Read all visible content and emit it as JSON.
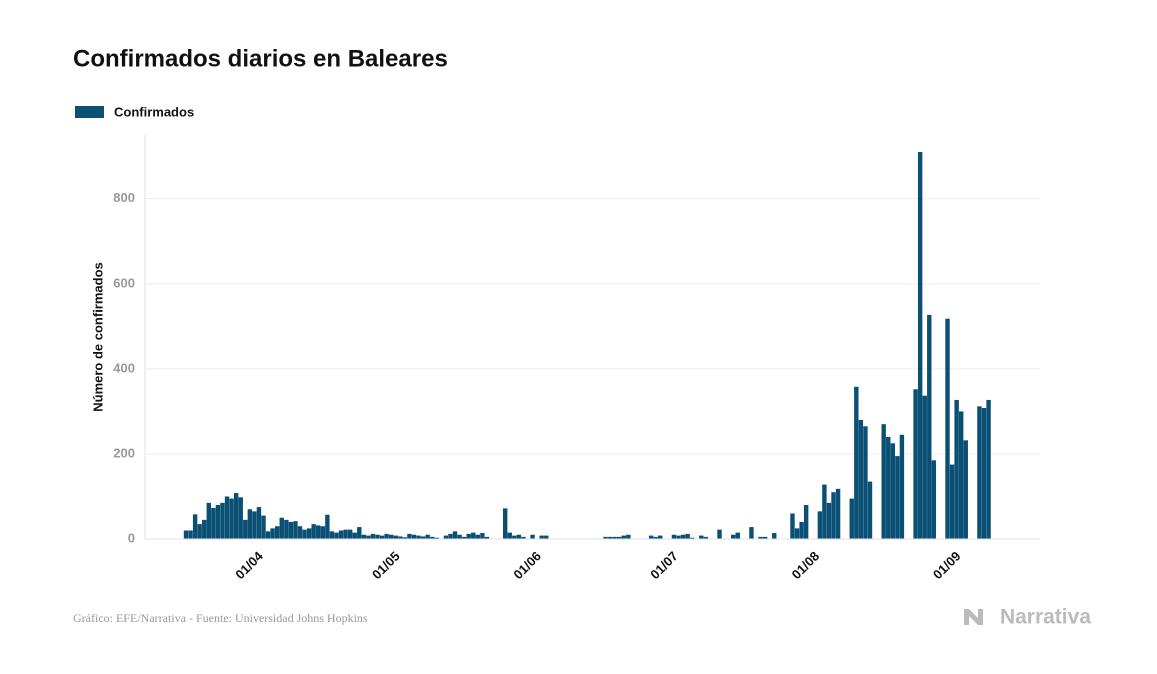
{
  "chart_data": {
    "type": "bar",
    "title": "Confirmados diarios en Baleares",
    "y_label": "Número de confirmados",
    "source": "Gráfico: EFE/Narrativa - Fuente: Universidad Johns Hopkins",
    "logo": "Narrativa",
    "ylim": [
      0,
      950
    ],
    "yticks": [
      0,
      200,
      400,
      600,
      800
    ],
    "grid": true,
    "categories": [
      null,
      null,
      null,
      null,
      null,
      null,
      null,
      null,
      null,
      null,
      null,
      null,
      null,
      null,
      "01/04",
      null,
      null,
      null,
      null,
      null,
      null,
      null,
      null,
      null,
      null,
      null,
      null,
      null,
      null,
      null,
      null,
      null,
      null,
      null,
      null,
      null,
      null,
      null,
      null,
      null,
      null,
      null,
      null,
      null,
      "01/05",
      null,
      null,
      null,
      null,
      null,
      null,
      null,
      null,
      null,
      null,
      null,
      null,
      null,
      null,
      null,
      null,
      null,
      null,
      null,
      null,
      null,
      null,
      null,
      null,
      null,
      null,
      null,
      null,
      null,
      null,
      "01/06",
      null,
      null,
      null,
      null,
      null,
      null,
      null,
      null,
      null,
      null,
      null,
      null,
      null,
      null,
      null,
      null,
      null,
      null,
      null,
      null,
      null,
      null,
      null,
      null,
      null,
      null,
      null,
      null,
      null,
      "01/07",
      null,
      null,
      null,
      null,
      null,
      null,
      null,
      null,
      null,
      null,
      null,
      null,
      null,
      null,
      null,
      null,
      null,
      null,
      null,
      null,
      null,
      null,
      null,
      null,
      null,
      null,
      null,
      null,
      null,
      null,
      "01/08",
      null,
      null,
      null,
      null,
      null,
      null,
      null,
      null,
      null,
      null,
      null,
      null,
      null,
      null,
      null,
      null,
      null,
      null,
      null,
      null,
      null,
      null,
      null,
      null,
      null,
      null,
      null,
      null,
      null,
      null,
      "01/09",
      null,
      null,
      null,
      null,
      null,
      null,
      null,
      null,
      null
    ],
    "series": [
      {
        "name": "Confirmados",
        "color": "#0a4f74",
        "values": [
          20,
          20,
          58,
          35,
          45,
          85,
          73,
          80,
          85,
          100,
          95,
          108,
          98,
          45,
          70,
          65,
          75,
          55,
          18,
          25,
          30,
          50,
          45,
          40,
          42,
          30,
          22,
          25,
          35,
          32,
          30,
          57,
          18,
          15,
          20,
          22,
          22,
          15,
          28,
          10,
          8,
          12,
          10,
          8,
          12,
          10,
          8,
          6,
          4,
          12,
          10,
          8,
          6,
          10,
          5,
          3,
          0,
          8,
          12,
          18,
          10,
          5,
          12,
          15,
          10,
          14,
          5,
          0,
          0,
          0,
          72,
          15,
          8,
          10,
          5,
          0,
          10,
          0,
          8,
          8,
          0,
          0,
          0,
          0,
          0,
          0,
          0,
          0,
          0,
          0,
          0,
          0,
          5,
          5,
          5,
          5,
          8,
          10,
          0,
          0,
          0,
          0,
          8,
          5,
          8,
          0,
          0,
          10,
          8,
          10,
          12,
          3,
          0,
          8,
          5,
          0,
          0,
          22,
          0,
          0,
          10,
          15,
          0,
          0,
          28,
          0,
          5,
          5,
          0,
          14,
          0,
          0,
          0,
          60,
          25,
          40,
          80,
          0,
          0,
          65,
          128,
          85,
          110,
          118,
          0,
          0,
          95,
          358,
          280,
          265,
          135,
          0,
          0,
          270,
          240,
          225,
          195,
          245,
          0,
          0,
          352,
          910,
          337,
          527,
          185,
          0,
          0,
          518,
          175,
          327,
          300,
          232,
          0,
          0,
          312,
          308,
          327
        ]
      }
    ]
  }
}
